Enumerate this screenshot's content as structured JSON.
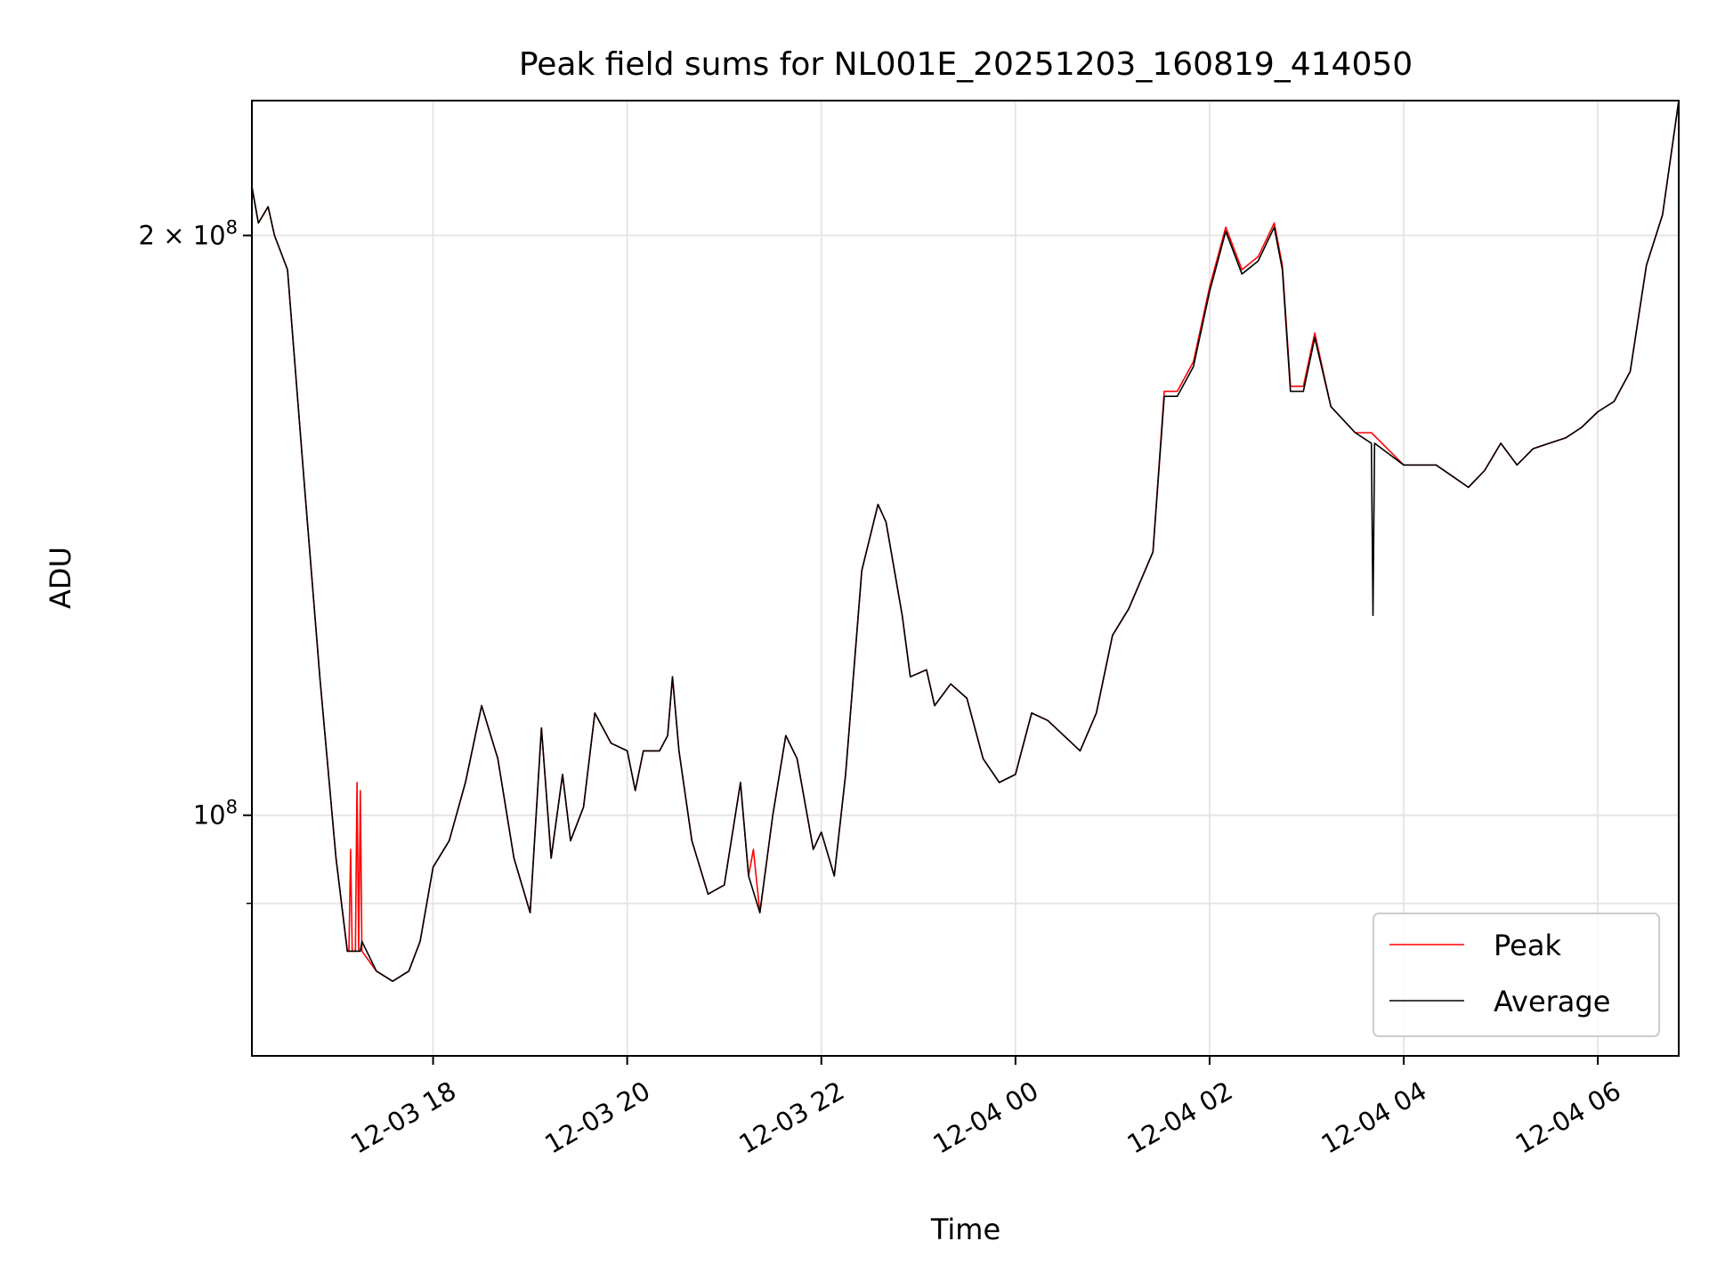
{
  "chart_data": {
    "type": "line",
    "title": "Peak field sums for NL001E_20251203_160819_414050",
    "xlabel": "Time",
    "ylabel": "ADU",
    "y_scale": "log",
    "ylim": [
      75000000,
      235000000
    ],
    "xlim": [
      "2025-12-03 16:08",
      "2025-12-04 06:50"
    ],
    "x_ticks": [
      "12-03 18",
      "12-03 20",
      "12-03 22",
      "12-04 00",
      "12-04 02",
      "12-04 04",
      "12-04 06"
    ],
    "y_major_ticks": [
      "2 × 10^8",
      "10^8"
    ],
    "y_major_tick_values": [
      200000000,
      100000000
    ],
    "y_minor_tick_values": [
      90000000
    ],
    "grid": true,
    "legend_position": "bottom-right",
    "series": [
      {
        "name": "Peak",
        "color": "#ff0000",
        "points": [
          [
            "2025-12-03 16:08",
            212000000
          ],
          [
            "2025-12-03 16:12",
            203000000
          ],
          [
            "2025-12-03 16:18",
            207000000
          ],
          [
            "2025-12-03 16:22",
            200000000
          ],
          [
            "2025-12-03 16:30",
            192000000
          ],
          [
            "2025-12-03 16:40",
            150000000
          ],
          [
            "2025-12-03 16:50",
            118000000
          ],
          [
            "2025-12-03 17:00",
            95000000
          ],
          [
            "2025-12-03 17:07",
            85000000
          ],
          [
            "2025-12-03 17:08",
            85000000
          ],
          [
            "2025-12-03 17:09",
            96000000
          ],
          [
            "2025-12-03 17:10",
            85000000
          ],
          [
            "2025-12-03 17:12",
            85000000
          ],
          [
            "2025-12-03 17:13",
            104000000
          ],
          [
            "2025-12-03 17:14",
            85000000
          ],
          [
            "2025-12-03 17:15",
            103000000
          ],
          [
            "2025-12-03 17:16",
            85000000
          ],
          [
            "2025-12-03 17:25",
            83000000
          ],
          [
            "2025-12-03 17:35",
            82000000
          ],
          [
            "2025-12-03 17:45",
            83000000
          ],
          [
            "2025-12-03 17:52",
            86000000
          ],
          [
            "2025-12-03 18:00",
            94000000
          ],
          [
            "2025-12-03 18:10",
            97000000
          ],
          [
            "2025-12-03 18:20",
            104000000
          ],
          [
            "2025-12-03 18:30",
            114000000
          ],
          [
            "2025-12-03 18:40",
            107000000
          ],
          [
            "2025-12-03 18:50",
            95000000
          ],
          [
            "2025-12-03 19:00",
            89000000
          ],
          [
            "2025-12-03 19:07",
            111000000
          ],
          [
            "2025-12-03 19:13",
            95000000
          ],
          [
            "2025-12-03 19:20",
            105000000
          ],
          [
            "2025-12-03 19:25",
            97000000
          ],
          [
            "2025-12-03 19:33",
            101000000
          ],
          [
            "2025-12-03 19:40",
            113000000
          ],
          [
            "2025-12-03 19:50",
            109000000
          ],
          [
            "2025-12-03 20:00",
            108000000
          ],
          [
            "2025-12-03 20:05",
            103000000
          ],
          [
            "2025-12-03 20:10",
            108000000
          ],
          [
            "2025-12-03 20:20",
            108000000
          ],
          [
            "2025-12-03 20:25",
            110000000
          ],
          [
            "2025-12-03 20:28",
            118000000
          ],
          [
            "2025-12-03 20:32",
            108000000
          ],
          [
            "2025-12-03 20:40",
            97000000
          ],
          [
            "2025-12-03 20:50",
            91000000
          ],
          [
            "2025-12-03 21:00",
            92000000
          ],
          [
            "2025-12-03 21:10",
            104000000
          ],
          [
            "2025-12-03 21:15",
            93000000
          ],
          [
            "2025-12-03 21:18",
            96000000
          ],
          [
            "2025-12-03 21:22",
            89000000
          ],
          [
            "2025-12-03 21:30",
            100000000
          ],
          [
            "2025-12-03 21:38",
            110000000
          ],
          [
            "2025-12-03 21:45",
            107000000
          ],
          [
            "2025-12-03 21:55",
            96000000
          ],
          [
            "2025-12-03 22:00",
            98000000
          ],
          [
            "2025-12-03 22:08",
            93000000
          ],
          [
            "2025-12-03 22:15",
            105000000
          ],
          [
            "2025-12-03 22:25",
            134000000
          ],
          [
            "2025-12-03 22:35",
            145000000
          ],
          [
            "2025-12-03 22:40",
            142000000
          ],
          [
            "2025-12-03 22:50",
            127000000
          ],
          [
            "2025-12-03 22:55",
            118000000
          ],
          [
            "2025-12-03 23:05",
            119000000
          ],
          [
            "2025-12-03 23:10",
            114000000
          ],
          [
            "2025-12-03 23:20",
            117000000
          ],
          [
            "2025-12-03 23:30",
            115000000
          ],
          [
            "2025-12-03 23:40",
            107000000
          ],
          [
            "2025-12-03 23:50",
            104000000
          ],
          [
            "2025-12-04 00:00",
            105000000
          ],
          [
            "2025-12-04 00:10",
            113000000
          ],
          [
            "2025-12-04 00:20",
            112000000
          ],
          [
            "2025-12-04 00:40",
            108000000
          ],
          [
            "2025-12-04 00:50",
            113000000
          ],
          [
            "2025-12-04 01:00",
            124000000
          ],
          [
            "2025-12-04 01:10",
            128000000
          ],
          [
            "2025-12-04 01:25",
            137000000
          ],
          [
            "2025-12-04 01:32",
            166000000
          ],
          [
            "2025-12-04 01:40",
            166000000
          ],
          [
            "2025-12-04 01:50",
            172000000
          ],
          [
            "2025-12-04 02:00",
            188000000
          ],
          [
            "2025-12-04 02:10",
            202000000
          ],
          [
            "2025-12-04 02:20",
            192000000
          ],
          [
            "2025-12-04 02:30",
            195000000
          ],
          [
            "2025-12-04 02:40",
            203000000
          ],
          [
            "2025-12-04 02:45",
            193000000
          ],
          [
            "2025-12-04 02:50",
            167000000
          ],
          [
            "2025-12-04 02:58",
            167000000
          ],
          [
            "2025-12-04 03:05",
            178000000
          ],
          [
            "2025-12-04 03:15",
            163000000
          ],
          [
            "2025-12-04 03:30",
            158000000
          ],
          [
            "2025-12-04 03:40",
            158000000
          ],
          [
            "2025-12-04 04:00",
            152000000
          ],
          [
            "2025-12-04 04:20",
            152000000
          ],
          [
            "2025-12-04 04:30",
            150000000
          ],
          [
            "2025-12-04 04:40",
            148000000
          ],
          [
            "2025-12-04 04:50",
            151000000
          ],
          [
            "2025-12-04 05:00",
            156000000
          ],
          [
            "2025-12-04 05:10",
            152000000
          ],
          [
            "2025-12-04 05:20",
            155000000
          ],
          [
            "2025-12-04 05:30",
            156000000
          ],
          [
            "2025-12-04 05:40",
            157000000
          ],
          [
            "2025-12-04 05:50",
            159000000
          ],
          [
            "2025-12-04 06:00",
            162000000
          ],
          [
            "2025-12-04 06:10",
            164000000
          ],
          [
            "2025-12-04 06:20",
            170000000
          ],
          [
            "2025-12-04 06:30",
            193000000
          ],
          [
            "2025-12-04 06:40",
            205000000
          ],
          [
            "2025-12-04 06:50",
            235000000
          ]
        ]
      },
      {
        "name": "Average",
        "color": "#000000",
        "points": [
          [
            "2025-12-03 16:08",
            212000000
          ],
          [
            "2025-12-03 16:12",
            203000000
          ],
          [
            "2025-12-03 16:18",
            207000000
          ],
          [
            "2025-12-03 16:22",
            200000000
          ],
          [
            "2025-12-03 16:30",
            192000000
          ],
          [
            "2025-12-03 16:40",
            150000000
          ],
          [
            "2025-12-03 16:50",
            118000000
          ],
          [
            "2025-12-03 17:00",
            95000000
          ],
          [
            "2025-12-03 17:07",
            85000000
          ],
          [
            "2025-12-03 17:12",
            85000000
          ],
          [
            "2025-12-03 17:15",
            85000000
          ],
          [
            "2025-12-03 17:16",
            86000000
          ],
          [
            "2025-12-03 17:25",
            83000000
          ],
          [
            "2025-12-03 17:35",
            82000000
          ],
          [
            "2025-12-03 17:45",
            83000000
          ],
          [
            "2025-12-03 17:52",
            86000000
          ],
          [
            "2025-12-03 18:00",
            94000000
          ],
          [
            "2025-12-03 18:10",
            97000000
          ],
          [
            "2025-12-03 18:20",
            104000000
          ],
          [
            "2025-12-03 18:30",
            114000000
          ],
          [
            "2025-12-03 18:40",
            107000000
          ],
          [
            "2025-12-03 18:50",
            95000000
          ],
          [
            "2025-12-03 19:00",
            89000000
          ],
          [
            "2025-12-03 19:07",
            111000000
          ],
          [
            "2025-12-03 19:13",
            95000000
          ],
          [
            "2025-12-03 19:20",
            105000000
          ],
          [
            "2025-12-03 19:25",
            97000000
          ],
          [
            "2025-12-03 19:33",
            101000000
          ],
          [
            "2025-12-03 19:40",
            113000000
          ],
          [
            "2025-12-03 19:50",
            109000000
          ],
          [
            "2025-12-03 20:00",
            108000000
          ],
          [
            "2025-12-03 20:05",
            103000000
          ],
          [
            "2025-12-03 20:10",
            108000000
          ],
          [
            "2025-12-03 20:20",
            108000000
          ],
          [
            "2025-12-03 20:25",
            110000000
          ],
          [
            "2025-12-03 20:28",
            118000000
          ],
          [
            "2025-12-03 20:32",
            108000000
          ],
          [
            "2025-12-03 20:40",
            97000000
          ],
          [
            "2025-12-03 20:50",
            91000000
          ],
          [
            "2025-12-03 21:00",
            92000000
          ],
          [
            "2025-12-03 21:10",
            104000000
          ],
          [
            "2025-12-03 21:15",
            93000000
          ],
          [
            "2025-12-03 21:22",
            89000000
          ],
          [
            "2025-12-03 21:30",
            100000000
          ],
          [
            "2025-12-03 21:38",
            110000000
          ],
          [
            "2025-12-03 21:45",
            107000000
          ],
          [
            "2025-12-03 21:55",
            96000000
          ],
          [
            "2025-12-03 22:00",
            98000000
          ],
          [
            "2025-12-03 22:08",
            93000000
          ],
          [
            "2025-12-03 22:15",
            105000000
          ],
          [
            "2025-12-03 22:25",
            134000000
          ],
          [
            "2025-12-03 22:35",
            145000000
          ],
          [
            "2025-12-03 22:40",
            142000000
          ],
          [
            "2025-12-03 22:50",
            127000000
          ],
          [
            "2025-12-03 22:55",
            118000000
          ],
          [
            "2025-12-03 23:05",
            119000000
          ],
          [
            "2025-12-03 23:10",
            114000000
          ],
          [
            "2025-12-03 23:20",
            117000000
          ],
          [
            "2025-12-03 23:30",
            115000000
          ],
          [
            "2025-12-03 23:40",
            107000000
          ],
          [
            "2025-12-03 23:50",
            104000000
          ],
          [
            "2025-12-04 00:00",
            105000000
          ],
          [
            "2025-12-04 00:10",
            113000000
          ],
          [
            "2025-12-04 00:20",
            112000000
          ],
          [
            "2025-12-04 00:40",
            108000000
          ],
          [
            "2025-12-04 00:50",
            113000000
          ],
          [
            "2025-12-04 01:00",
            124000000
          ],
          [
            "2025-12-04 01:10",
            128000000
          ],
          [
            "2025-12-04 01:25",
            137000000
          ],
          [
            "2025-12-04 01:32",
            165000000
          ],
          [
            "2025-12-04 01:40",
            165000000
          ],
          [
            "2025-12-04 01:50",
            171000000
          ],
          [
            "2025-12-04 02:00",
            187000000
          ],
          [
            "2025-12-04 02:10",
            201000000
          ],
          [
            "2025-12-04 02:20",
            191000000
          ],
          [
            "2025-12-04 02:30",
            194000000
          ],
          [
            "2025-12-04 02:40",
            202000000
          ],
          [
            "2025-12-04 02:45",
            192000000
          ],
          [
            "2025-12-04 02:50",
            166000000
          ],
          [
            "2025-12-04 02:58",
            166000000
          ],
          [
            "2025-12-04 03:05",
            177000000
          ],
          [
            "2025-12-04 03:15",
            163000000
          ],
          [
            "2025-12-04 03:30",
            158000000
          ],
          [
            "2025-12-04 03:40",
            156000000
          ],
          [
            "2025-12-04 03:41",
            127000000
          ],
          [
            "2025-12-04 03:42",
            156000000
          ],
          [
            "2025-12-04 04:00",
            152000000
          ],
          [
            "2025-12-04 04:20",
            152000000
          ],
          [
            "2025-12-04 04:30",
            150000000
          ],
          [
            "2025-12-04 04:40",
            148000000
          ],
          [
            "2025-12-04 04:50",
            151000000
          ],
          [
            "2025-12-04 05:00",
            156000000
          ],
          [
            "2025-12-04 05:10",
            152000000
          ],
          [
            "2025-12-04 05:20",
            155000000
          ],
          [
            "2025-12-04 05:30",
            156000000
          ],
          [
            "2025-12-04 05:40",
            157000000
          ],
          [
            "2025-12-04 05:50",
            159000000
          ],
          [
            "2025-12-04 06:00",
            162000000
          ],
          [
            "2025-12-04 06:10",
            164000000
          ],
          [
            "2025-12-04 06:20",
            170000000
          ],
          [
            "2025-12-04 06:30",
            193000000
          ],
          [
            "2025-12-04 06:40",
            205000000
          ],
          [
            "2025-12-04 06:50",
            235000000
          ]
        ]
      }
    ]
  }
}
